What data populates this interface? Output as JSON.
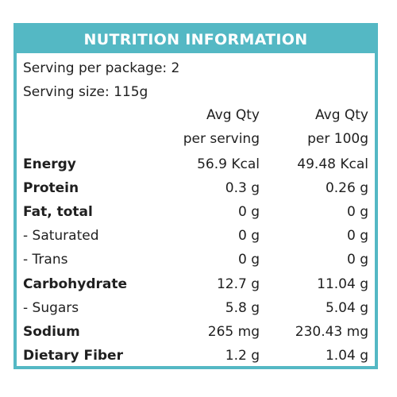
{
  "header": {
    "title": "NUTRITION INFORMATION"
  },
  "serving": {
    "per_package": "Serving per package: 2",
    "size": "Serving size: 115g"
  },
  "columns": {
    "per_serving": {
      "line1": "Avg Qty",
      "line2": "per serving"
    },
    "per_100g": {
      "line1": "Avg Qty",
      "line2": "per 100g"
    }
  },
  "rows": [
    {
      "label": "Energy",
      "bold": true,
      "per_serving": "56.9 Kcal",
      "per_100g": "49.48 Kcal"
    },
    {
      "label": "Protein",
      "bold": true,
      "per_serving": "0.3 g",
      "per_100g": "0.26 g"
    },
    {
      "label": "Fat, total",
      "bold": true,
      "per_serving": "0 g",
      "per_100g": "0 g"
    },
    {
      "label": "- Saturated",
      "bold": false,
      "per_serving": "0 g",
      "per_100g": "0 g"
    },
    {
      "label": "- Trans",
      "bold": false,
      "per_serving": "0 g",
      "per_100g": "0 g"
    },
    {
      "label": "Carbohydrate",
      "bold": true,
      "per_serving": "12.7 g",
      "per_100g": "11.04 g"
    },
    {
      "label": "- Sugars",
      "bold": false,
      "per_serving": "5.8 g",
      "per_100g": "5.04 g"
    },
    {
      "label": "Sodium",
      "bold": true,
      "per_serving": "265 mg",
      "per_100g": "230.43 mg"
    },
    {
      "label": "Dietary Fiber",
      "bold": true,
      "per_serving": "1.2 g",
      "per_100g": "1.04 g"
    }
  ],
  "colors": {
    "accent": "#54b8c4",
    "header_text": "#ffffff",
    "text": "#1f1f1f"
  }
}
